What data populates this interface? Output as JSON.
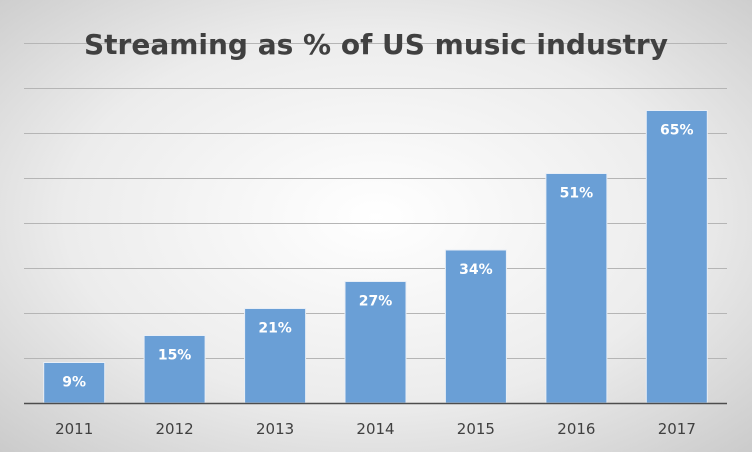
{
  "chart_data": {
    "type": "bar",
    "title": "Streaming as % of US music industry",
    "xlabel": "",
    "ylabel": "",
    "categories": [
      "2011",
      "2012",
      "2013",
      "2014",
      "2015",
      "2016",
      "2017"
    ],
    "values": [
      9,
      15,
      21,
      27,
      34,
      51,
      65
    ],
    "data_labels": [
      "9%",
      "15%",
      "21%",
      "27%",
      "34%",
      "51%",
      "65%"
    ],
    "ylim": [
      0,
      90
    ],
    "y_grid_step": 10,
    "grid": true,
    "legend": "none",
    "colors": {
      "bar_fill": "#6A9FD6",
      "bar_edge": "#E8EEF6",
      "gridline": "#B5B5B5",
      "axis_line": "#4D4D4D",
      "background_light": "#FFFFFF",
      "background_dark": "#C8C8C8"
    }
  }
}
